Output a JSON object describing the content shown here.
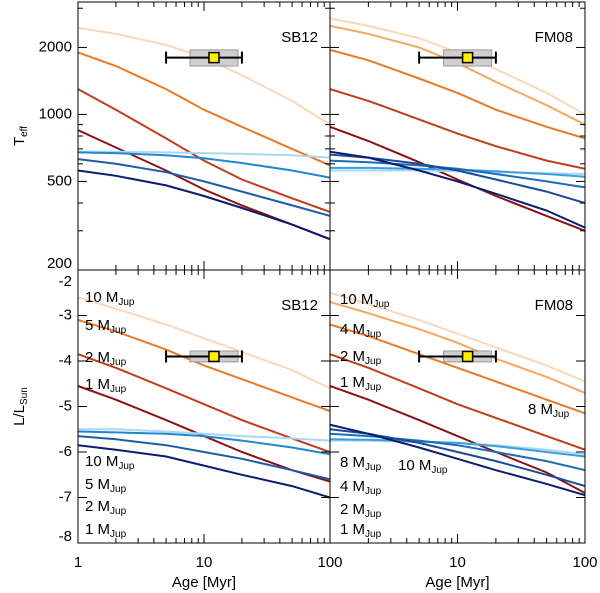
{
  "chart_data": [
    {
      "type": "line",
      "label": "SB12",
      "xlog": true,
      "ylog": true,
      "xlim": [
        1,
        100
      ],
      "ylim": [
        200,
        3200
      ],
      "xticks": [
        1,
        10,
        100
      ],
      "xtick_labels": false,
      "xminorticks": [
        2,
        3,
        4,
        5,
        6,
        7,
        8,
        9,
        20,
        30,
        40,
        50,
        60,
        70,
        80,
        90
      ],
      "yticks": [
        200,
        500,
        1000,
        2000
      ],
      "ytick_labels": true,
      "yminorticks": [
        300,
        400,
        600,
        700,
        800,
        900,
        3000
      ],
      "ylabel": "T",
      "ylabel_sub": "eff",
      "x": [
        1,
        2,
        5,
        10,
        20,
        50,
        100
      ],
      "series": [
        {
          "color": "#fcd8b8",
          "values": [
            2450,
            2300,
            2050,
            1800,
            1500,
            1150,
            900
          ]
        },
        {
          "color": "#ea7a25",
          "values": [
            1900,
            1650,
            1300,
            1050,
            880,
            700,
            590
          ]
        },
        {
          "color": "#c23c1c",
          "values": [
            1300,
            1050,
            780,
            620,
            510,
            420,
            365
          ]
        },
        {
          "color": "#8c1212",
          "values": [
            850,
            710,
            560,
            460,
            390,
            320,
            275
          ]
        },
        {
          "color": "#a8d8f2",
          "values": [
            680,
            680,
            675,
            670,
            665,
            655,
            640
          ]
        },
        {
          "color": "#2088d0",
          "values": [
            675,
            670,
            655,
            635,
            605,
            560,
            520
          ]
        },
        {
          "color": "#1f5ca6",
          "values": [
            630,
            600,
            550,
            500,
            450,
            390,
            350
          ]
        },
        {
          "color": "#0c1c6e",
          "values": [
            560,
            530,
            480,
            430,
            380,
            320,
            275
          ]
        }
      ],
      "point": {
        "x": 12,
        "xlow": 5,
        "xhigh": 20,
        "y": 1800,
        "yerr": 150
      }
    },
    {
      "type": "line",
      "label": "FM08",
      "xlog": true,
      "ylog": true,
      "xlim": [
        1,
        100
      ],
      "ylim": [
        200,
        3200
      ],
      "xticks": [
        1,
        10,
        100
      ],
      "xtick_labels": false,
      "xminorticks": [
        2,
        3,
        4,
        5,
        6,
        7,
        8,
        9,
        20,
        30,
        40,
        50,
        60,
        70,
        80,
        90
      ],
      "yticks": [
        200,
        500,
        1000,
        2000
      ],
      "ytick_labels": false,
      "yminorticks": [
        300,
        400,
        600,
        700,
        800,
        900,
        3000
      ],
      "x": [
        1,
        2,
        5,
        10,
        20,
        50,
        100
      ],
      "series": [
        {
          "color": "#fcd8b8",
          "values": [
            2700,
            2500,
            2200,
            1900,
            1600,
            1250,
            1000
          ]
        },
        {
          "color": "#f5a862",
          "values": [
            2500,
            2300,
            2000,
            1700,
            1400,
            1100,
            900
          ]
        },
        {
          "color": "#ea7a25",
          "values": [
            1950,
            1750,
            1450,
            1250,
            1050,
            880,
            780
          ]
        },
        {
          "color": "#c23c1c",
          "values": [
            1300,
            1150,
            950,
            820,
            720,
            620,
            570
          ]
        },
        {
          "color": "#8c1212",
          "values": [
            880,
            760,
            610,
            510,
            430,
            350,
            300
          ]
        },
        {
          "color": "#a8d8f2",
          "values": [
            560,
            560,
            560,
            555,
            550,
            545,
            540
          ]
        },
        {
          "color": "#3a9ee0",
          "values": [
            575,
            575,
            570,
            565,
            555,
            540,
            525
          ]
        },
        {
          "color": "#1f6cb6",
          "values": [
            620,
            610,
            590,
            570,
            540,
            500,
            470
          ]
        },
        {
          "color": "#1a4c96",
          "values": [
            660,
            640,
            600,
            560,
            510,
            450,
            400
          ]
        },
        {
          "color": "#0c1c6e",
          "values": [
            680,
            640,
            560,
            500,
            440,
            370,
            310
          ]
        }
      ],
      "point": {
        "x": 12,
        "xlow": 5,
        "xhigh": 20,
        "y": 1800,
        "yerr": 150
      }
    },
    {
      "type": "line",
      "label": "SB12",
      "xlog": true,
      "ylog": false,
      "xlim": [
        1,
        100
      ],
      "ylim": [
        -8,
        -2
      ],
      "xticks": [
        1,
        10,
        100
      ],
      "xtick_labels": true,
      "xminorticks": [
        2,
        3,
        4,
        5,
        6,
        7,
        8,
        9,
        20,
        30,
        40,
        50,
        60,
        70,
        80,
        90
      ],
      "yticks": [
        -8,
        -7,
        -6,
        -5,
        -4,
        -3,
        -2
      ],
      "ytick_labels": true,
      "ylabel": "L/L",
      "ylabel_sub": "Sun",
      "xlabel": "Age [Myr]",
      "x": [
        1,
        2,
        5,
        10,
        20,
        50,
        100
      ],
      "series": [
        {
          "name": "10 M",
          "name_sub": "Jup",
          "color": "#fcd8b8",
          "values": [
            -2.6,
            -2.85,
            -3.2,
            -3.5,
            -3.8,
            -4.2,
            -4.6
          ]
        },
        {
          "name": "5 M",
          "name_sub": "Jup",
          "color": "#ea7a25",
          "values": [
            -3.1,
            -3.35,
            -3.75,
            -4.1,
            -4.4,
            -4.8,
            -5.1
          ]
        },
        {
          "name": "2 M",
          "name_sub": "Jup",
          "color": "#c23c1c",
          "values": [
            -3.85,
            -4.15,
            -4.6,
            -4.95,
            -5.3,
            -5.7,
            -6.0
          ]
        },
        {
          "name": "1 M",
          "name_sub": "Jup",
          "color": "#8c1212",
          "values": [
            -4.55,
            -4.85,
            -5.3,
            -5.65,
            -6.0,
            -6.4,
            -6.65
          ]
        },
        {
          "name": "10 M",
          "name_sub": "Jup",
          "color": "#a8d8f2",
          "values": [
            -5.5,
            -5.5,
            -5.55,
            -5.6,
            -5.65,
            -5.7,
            -5.75
          ]
        },
        {
          "name": "5 M",
          "name_sub": "Jup",
          "color": "#2088d0",
          "values": [
            -5.55,
            -5.57,
            -5.6,
            -5.65,
            -5.75,
            -5.9,
            -6.05
          ]
        },
        {
          "name": "2 M",
          "name_sub": "Jup",
          "color": "#1f5ca6",
          "values": [
            -5.65,
            -5.72,
            -5.85,
            -6.0,
            -6.15,
            -6.4,
            -6.6
          ]
        },
        {
          "name": "1 M",
          "name_sub": "Jup",
          "color": "#0c1c6e",
          "values": [
            -5.85,
            -5.95,
            -6.1,
            -6.3,
            -6.5,
            -6.75,
            -7.0
          ]
        }
      ],
      "point": {
        "x": 12,
        "xlow": 5,
        "xhigh": 20,
        "y": -3.9,
        "yerr": 0.12
      }
    },
    {
      "type": "line",
      "label": "FM08",
      "xlog": true,
      "ylog": false,
      "xlim": [
        1,
        100
      ],
      "ylim": [
        -8,
        -2
      ],
      "xticks": [
        10,
        100
      ],
      "xtick_labels": true,
      "xminorticks": [
        2,
        3,
        4,
        5,
        6,
        7,
        8,
        9,
        20,
        30,
        40,
        50,
        60,
        70,
        80,
        90
      ],
      "yticks": [
        -8,
        -7,
        -6,
        -5,
        -4,
        -3,
        -2
      ],
      "ytick_labels": false,
      "xlabel": "Age [Myr]",
      "x": [
        1,
        2,
        5,
        10,
        20,
        50,
        100
      ],
      "series": [
        {
          "name": "10 M",
          "name_sub": "Jup",
          "color": "#fcd8b8",
          "values": [
            -2.5,
            -2.75,
            -3.1,
            -3.4,
            -3.7,
            -4.1,
            -4.45
          ]
        },
        {
          "name": "8 M",
          "name_sub": "Jup",
          "color": "#f5a862",
          "values": [
            -2.7,
            -2.95,
            -3.3,
            -3.6,
            -3.95,
            -4.35,
            -4.7
          ]
        },
        {
          "name": "4 M",
          "name_sub": "Jup",
          "color": "#ea7a25",
          "values": [
            -3.2,
            -3.45,
            -3.85,
            -4.15,
            -4.45,
            -4.85,
            -5.15
          ]
        },
        {
          "name": "2 M",
          "name_sub": "Jup",
          "color": "#c23c1c",
          "values": [
            -3.85,
            -4.15,
            -4.6,
            -4.95,
            -5.25,
            -5.65,
            -5.95
          ]
        },
        {
          "name": "1 M",
          "name_sub": "Jup",
          "color": "#8c1212",
          "values": [
            -4.55,
            -4.85,
            -5.3,
            -5.65,
            -6.0,
            -6.45,
            -6.9
          ]
        },
        {
          "name": "10 M",
          "name_sub": "Jup",
          "color": "#a8d8f2",
          "values": [
            -5.75,
            -5.75,
            -5.78,
            -5.8,
            -5.85,
            -5.95,
            -6.05
          ]
        },
        {
          "name": "8 M",
          "name_sub": "Jup",
          "color": "#3a9ee0",
          "values": [
            -5.72,
            -5.73,
            -5.77,
            -5.8,
            -5.87,
            -6.0,
            -6.1
          ]
        },
        {
          "name": "4 M",
          "name_sub": "Jup",
          "color": "#1f6cb6",
          "values": [
            -5.6,
            -5.65,
            -5.75,
            -5.85,
            -6.0,
            -6.2,
            -6.4
          ]
        },
        {
          "name": "2 M",
          "name_sub": "Jup",
          "color": "#1a4c96",
          "values": [
            -5.5,
            -5.6,
            -5.8,
            -6.0,
            -6.2,
            -6.5,
            -6.75
          ]
        },
        {
          "name": "1 M",
          "name_sub": "Jup",
          "color": "#0c1c6e",
          "values": [
            -5.4,
            -5.6,
            -5.9,
            -6.15,
            -6.4,
            -6.7,
            -6.95
          ]
        }
      ],
      "point": {
        "x": 12,
        "xlow": 5,
        "xhigh": 20,
        "y": -3.9,
        "yerr": 0.12
      }
    }
  ]
}
